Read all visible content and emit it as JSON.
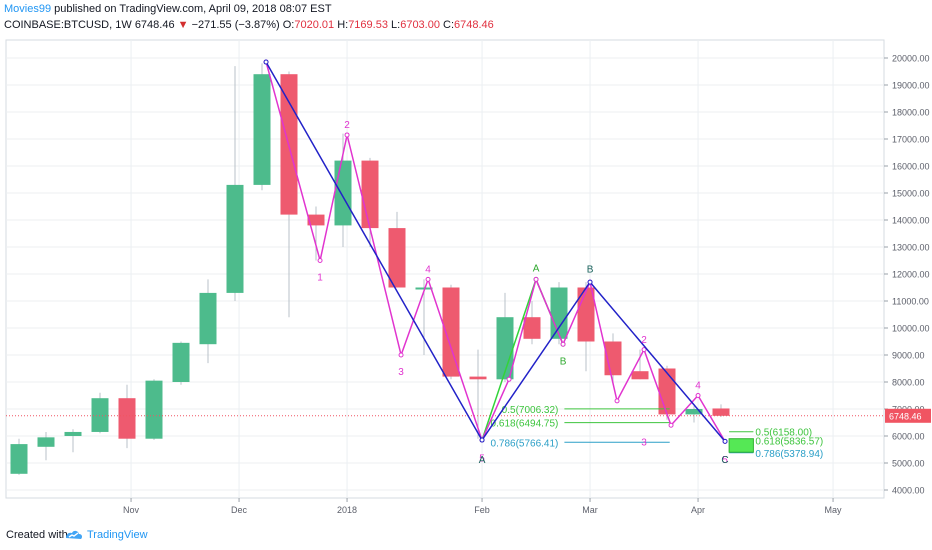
{
  "header": {
    "author": "Movies99",
    "published": " published on TradingView.com, April 09, 2018 08:07 EST",
    "symbol": "COINBASE:BTCUSD, 1W",
    "last": "6748.46",
    "down_arrow": "▼",
    "change": "−271.55 (−3.87%)",
    "o_label": "O:",
    "o_value": "7020.01",
    "h_label": "H:",
    "h_value": "7169.53",
    "l_label": "L:",
    "l_value": "6703.00",
    "c_label": "C:",
    "c_value": "6748.46"
  },
  "footer": {
    "created": "Created with",
    "brand": "TradingView"
  },
  "colors": {
    "up": "#4dbb8c",
    "down": "#ee5a6f",
    "wick": "#b8c1c8",
    "elliott": "#e134cf",
    "abcd": "#2222c8",
    "abc_green": "#33d33a",
    "fib_green": "#3ec43e",
    "fib_blue": "#2b9fc7",
    "price_label": "#f05462",
    "grid": "#eceff2",
    "axis_text": "#5d606b"
  },
  "chart_data": {
    "type": "candlestick",
    "interval": "1W",
    "ylim": [
      3800,
      21000
    ],
    "y_ticks": [
      "4000.00",
      "5000.00",
      "6000.00",
      "7000.00",
      "8000.00",
      "9000.00",
      "10000.00",
      "11000.00",
      "12000.00",
      "13000.00",
      "14000.00",
      "15000.00",
      "16000.00",
      "17000.00",
      "18000.00",
      "19000.00",
      "20000.00"
    ],
    "x_ticks": [
      {
        "label": "Nov",
        "i": 4.15
      },
      {
        "label": "Dec",
        "i": 8.15
      },
      {
        "label": "2018",
        "i": 12.15
      },
      {
        "label": "Feb",
        "i": 17.15
      },
      {
        "label": "Mar",
        "i": 21.15
      },
      {
        "label": "Apr",
        "i": 25.15
      },
      {
        "label": "May",
        "i": 30.15
      }
    ],
    "last_price": 6748.46,
    "last_price_label": "6748.46",
    "candles": [
      {
        "o": 4600,
        "h": 5900,
        "l": 4560,
        "c": 5700
      },
      {
        "o": 5600,
        "h": 6150,
        "l": 5100,
        "c": 5950
      },
      {
        "o": 6000,
        "h": 6250,
        "l": 5400,
        "c": 6150
      },
      {
        "o": 6150,
        "h": 7600,
        "l": 6100,
        "c": 7400
      },
      {
        "o": 7400,
        "h": 7900,
        "l": 5550,
        "c": 5900
      },
      {
        "o": 5900,
        "h": 8100,
        "l": 5850,
        "c": 8050
      },
      {
        "o": 8000,
        "h": 9500,
        "l": 7900,
        "c": 9450
      },
      {
        "o": 9400,
        "h": 11800,
        "l": 8700,
        "c": 11300
      },
      {
        "o": 11300,
        "h": 19700,
        "l": 11000,
        "c": 15300
      },
      {
        "o": 15300,
        "h": 19800,
        "l": 15100,
        "c": 19400
      },
      {
        "o": 19400,
        "h": 19500,
        "l": 10400,
        "c": 14200
      },
      {
        "o": 14200,
        "h": 14500,
        "l": 12500,
        "c": 13800
      },
      {
        "o": 13800,
        "h": 17200,
        "l": 13000,
        "c": 16200
      },
      {
        "o": 16200,
        "h": 16300,
        "l": 13000,
        "c": 13700
      },
      {
        "o": 13700,
        "h": 14300,
        "l": 11500,
        "c": 11500
      },
      {
        "o": 11500,
        "h": 11800,
        "l": 9000,
        "c": 11500
      },
      {
        "o": 11500,
        "h": 11600,
        "l": 8100,
        "c": 8200
      },
      {
        "o": 8200,
        "h": 9200,
        "l": 5900,
        "c": 8100
      },
      {
        "o": 8100,
        "h": 11300,
        "l": 8000,
        "c": 10400
      },
      {
        "o": 10400,
        "h": 11000,
        "l": 9400,
        "c": 9600
      },
      {
        "o": 9600,
        "h": 11700,
        "l": 9400,
        "c": 11500
      },
      {
        "o": 11500,
        "h": 11700,
        "l": 8400,
        "c": 9500
      },
      {
        "o": 9500,
        "h": 9800,
        "l": 7900,
        "c": 8250
      },
      {
        "o": 8400,
        "h": 9200,
        "l": 8100,
        "c": 8100
      },
      {
        "o": 8500,
        "h": 8600,
        "l": 6600,
        "c": 6800
      },
      {
        "o": 6800,
        "h": 7100,
        "l": 6500,
        "c": 7000
      },
      {
        "o": 7020,
        "h": 7170,
        "l": 6703,
        "c": 6748
      }
    ],
    "elliott_path": [
      [
        9.15,
        19850
      ],
      [
        11.15,
        12500
      ],
      [
        12.15,
        17150
      ],
      [
        14.15,
        9000
      ],
      [
        15.15,
        11800
      ],
      [
        17.15,
        5850
      ],
      [
        18.15,
        8100
      ],
      [
        19.15,
        11800
      ],
      [
        20.15,
        9400
      ],
      [
        21.15,
        11700
      ],
      [
        22.15,
        7300
      ],
      [
        23.15,
        9200
      ],
      [
        24.15,
        6400
      ],
      [
        25.15,
        7500
      ],
      [
        26.15,
        5800
      ]
    ],
    "elliott_labels": [
      {
        "text": "1",
        "i": 11.15,
        "y": 11900,
        "pos": "below"
      },
      {
        "text": "2",
        "i": 12.15,
        "y": 17550,
        "pos": "above"
      },
      {
        "text": "3",
        "i": 14.15,
        "y": 8400,
        "pos": "below"
      },
      {
        "text": "4",
        "i": 15.15,
        "y": 12200,
        "pos": "above"
      },
      {
        "text": "5",
        "i": 17.15,
        "y": 5200,
        "pos": "below"
      },
      {
        "text": "2",
        "i": 23.15,
        "y": 9600,
        "pos": "above"
      },
      {
        "text": "3",
        "i": 23.15,
        "y": 5800,
        "pos": "below"
      },
      {
        "text": "4",
        "i": 25.15,
        "y": 7900,
        "pos": "above"
      },
      {
        "text": "5",
        "i": 26.15,
        "y": 5150,
        "pos": "below"
      }
    ],
    "abcd_path": [
      [
        9.15,
        19850
      ],
      [
        17.15,
        5850
      ],
      [
        21.15,
        11700
      ],
      [
        26.15,
        5800
      ]
    ],
    "abcd_labels": [
      {
        "text": "A",
        "i": 17.15,
        "y": 5150
      },
      {
        "text": "B",
        "i": 21.15,
        "y": 12200
      },
      {
        "text": "C",
        "i": 26.15,
        "y": 5150
      }
    ],
    "abc_green_path": [
      [
        17.15,
        5850
      ],
      [
        19.15,
        11800
      ],
      [
        20.15,
        9400
      ]
    ],
    "abc_green_labels": [
      {
        "text": "A",
        "i": 19.15,
        "y": 12250
      },
      {
        "text": "B",
        "i": 20.15,
        "y": 8800
      }
    ],
    "fib_levels": [
      {
        "label": "0.5(7006.32)",
        "price": 7006.32,
        "color": "green",
        "i0": 20.2,
        "i1": 24.1
      },
      {
        "label": "0.618(6494.75)",
        "price": 6494.75,
        "color": "green",
        "i0": 20.2,
        "i1": 24.1
      },
      {
        "label": "0.786(5766.41)",
        "price": 5766.41,
        "color": "blue",
        "i0": 20.2,
        "i1": 24.1
      },
      {
        "label": "0.5(6158.00)",
        "price": 6158.0,
        "color": "green",
        "i0": 26.3,
        "i1": 27.2
      },
      {
        "label": "0.618(5836.57)",
        "price": 5836.57,
        "color": "green",
        "i0": 26.3,
        "i1": 27.2
      },
      {
        "label": "0.786(5378.94)",
        "price": 5378.94,
        "color": "blue",
        "i0": 26.3,
        "i1": 27.2
      }
    ],
    "target_zone": {
      "low": 5400,
      "high": 5900,
      "i0": 26.3,
      "i1": 27.2
    }
  }
}
